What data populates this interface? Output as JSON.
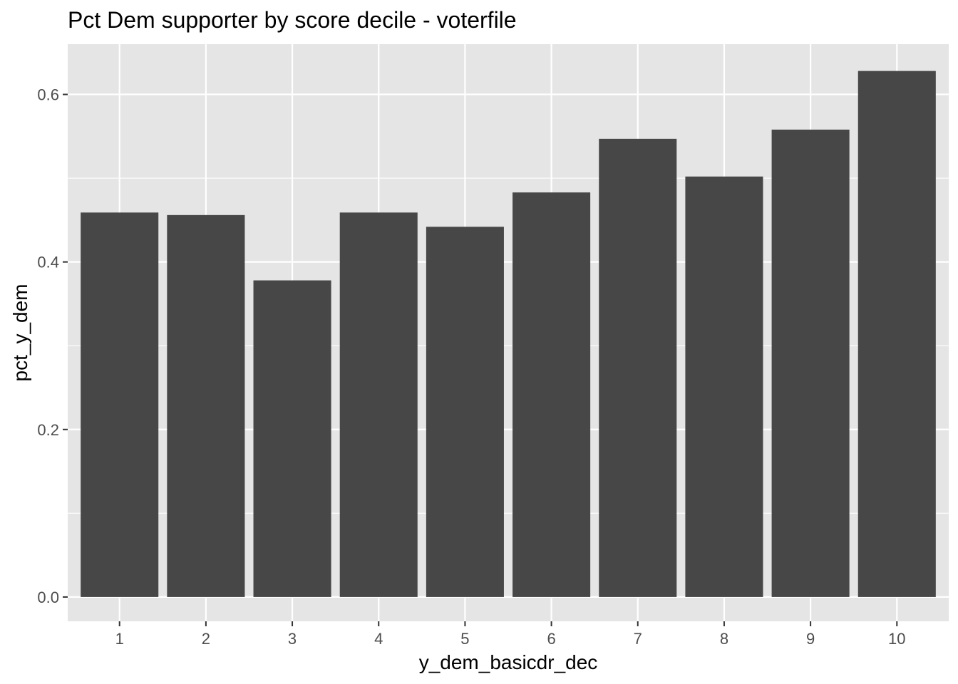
{
  "chart_data": {
    "type": "bar",
    "title": "Pct Dem supporter by score decile - voterfile",
    "xlabel": "y_dem_basicdr_dec",
    "ylabel": "pct_y_dem",
    "categories": [
      "1",
      "2",
      "3",
      "4",
      "5",
      "6",
      "7",
      "8",
      "9",
      "10"
    ],
    "values": [
      0.459,
      0.456,
      0.378,
      0.459,
      0.442,
      0.483,
      0.547,
      0.502,
      0.558,
      0.628
    ],
    "ylim": [
      -0.029,
      0.66
    ],
    "yticks": [
      0.0,
      0.2,
      0.4,
      0.6
    ],
    "ytick_labels": [
      "0.0",
      "0.2",
      "0.4",
      "0.6"
    ],
    "grid": true,
    "colors": {
      "panel_background": "#e5e5e5",
      "grid": "#ffffff",
      "bar_fill": "#474747",
      "tick_text": "#4d4d4d",
      "tick_mark": "#333333"
    }
  }
}
